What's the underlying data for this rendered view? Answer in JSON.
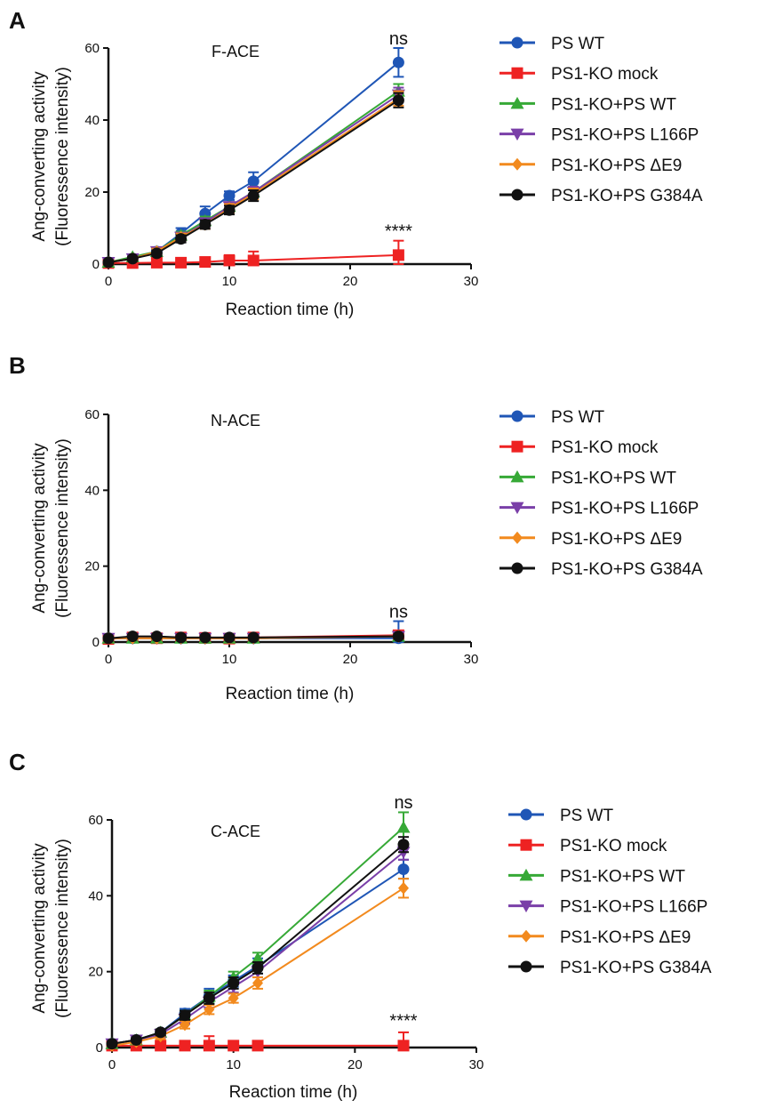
{
  "marker_colors": {
    "PS WT": "#1f56b6",
    "PS1-KO mock": "#ee2222",
    "PS1-KO+PS WT": "#36a936",
    "PS1-KO+PS L166P": "#7a3fa8",
    "PS1-KO+PS ΔE9": "#f28a1e",
    "PS1-KO+PS G384A": "#111111"
  },
  "marker_shapes": {
    "PS WT": "circle",
    "PS1-KO mock": "square",
    "PS1-KO+PS WT": "triangle-up",
    "PS1-KO+PS L166P": "triangle-down",
    "PS1-KO+PS ΔE9": "diamond",
    "PS1-KO+PS G384A": "circle"
  },
  "chart_data": [
    {
      "type": "line",
      "panel": "A",
      "title": "F-ACE",
      "xlabel": "Reaction time (h)",
      "ylabel_line1": "Ang-converting activity",
      "ylabel_line2": "(Fluoressence intensity)",
      "xlim": [
        0,
        30
      ],
      "ylim": [
        0,
        60
      ],
      "xticks": [
        0,
        10,
        20,
        30
      ],
      "yticks": [
        0,
        20,
        40,
        60
      ],
      "x": [
        0,
        2,
        4,
        6,
        8,
        10,
        12,
        24
      ],
      "annotations": [
        {
          "text": "ns",
          "x": 24,
          "y": 61
        },
        {
          "text": "****",
          "x": 24,
          "y": 7.5
        }
      ],
      "series": [
        {
          "name": "PS WT",
          "values": [
            0.5,
            1.5,
            3.5,
            8.5,
            14,
            19,
            23,
            56
          ],
          "errors": [
            0,
            0.5,
            0.8,
            1.5,
            2,
            1.2,
            2.5,
            4
          ]
        },
        {
          "name": "PS1-KO mock",
          "values": [
            0.3,
            0.3,
            0.4,
            0.4,
            0.6,
            1,
            1,
            2.5
          ],
          "errors": [
            0,
            0.2,
            0.3,
            0.3,
            0.4,
            1.5,
            2.5,
            4
          ]
        },
        {
          "name": "PS1-KO+PS WT",
          "values": [
            0.5,
            2,
            3.5,
            8,
            12,
            16,
            20,
            48
          ],
          "errors": [
            0,
            0.5,
            0.8,
            1,
            1.2,
            1.2,
            1.5,
            2
          ]
        },
        {
          "name": "PS1-KO+PS L166P",
          "values": [
            0.5,
            1.5,
            3.5,
            7.5,
            11.5,
            16,
            20,
            47
          ],
          "errors": [
            0,
            0.5,
            0.8,
            1,
            1.2,
            1.2,
            1.5,
            2
          ]
        },
        {
          "name": "PS1-KO+PS ΔE9",
          "values": [
            0.5,
            1.5,
            3.5,
            7.5,
            11,
            15.5,
            19.5,
            46
          ],
          "errors": [
            0,
            0.5,
            0.8,
            1,
            1.2,
            1.2,
            1.5,
            2
          ]
        },
        {
          "name": "PS1-KO+PS G384A",
          "values": [
            0.5,
            1.5,
            3,
            7,
            11,
            15,
            19,
            45.5
          ],
          "errors": [
            0,
            0.5,
            0.8,
            1,
            1.2,
            1.2,
            1.5,
            2
          ]
        }
      ]
    },
    {
      "type": "line",
      "panel": "B",
      "title": "N-ACE",
      "xlabel": "Reaction time (h)",
      "ylabel_line1": "Ang-converting activity",
      "ylabel_line2": "(Fluoressence intensity)",
      "xlim": [
        0,
        30
      ],
      "ylim": [
        0,
        60
      ],
      "xticks": [
        0,
        10,
        20,
        30
      ],
      "yticks": [
        0,
        20,
        40,
        60
      ],
      "x": [
        0,
        2,
        4,
        6,
        8,
        10,
        12,
        24
      ],
      "annotations": [
        {
          "text": "ns",
          "x": 24,
          "y": 6.5
        }
      ],
      "series": [
        {
          "name": "PS WT",
          "values": [
            1,
            1,
            1,
            1,
            1,
            1,
            1,
            1
          ],
          "errors": [
            0,
            0.3,
            0.3,
            0.3,
            0.3,
            0.3,
            0.3,
            4.5
          ]
        },
        {
          "name": "PS1-KO mock",
          "values": [
            0.8,
            1.2,
            1,
            1.2,
            1.1,
            0.9,
            1.2,
            1.8
          ],
          "errors": [
            0,
            0.3,
            0.3,
            0.3,
            0.3,
            0.3,
            0.3,
            1
          ]
        },
        {
          "name": "PS1-KO+PS WT",
          "values": [
            1,
            1,
            1,
            1,
            1,
            1,
            1,
            1.5
          ],
          "errors": [
            0,
            0.3,
            0.3,
            0.3,
            0.3,
            0.3,
            0.3,
            0.5
          ]
        },
        {
          "name": "PS1-KO+PS L166P",
          "values": [
            1,
            1,
            1,
            1,
            1,
            1,
            1,
            1.5
          ],
          "errors": [
            0,
            0.3,
            0.3,
            0.3,
            0.3,
            0.3,
            0.3,
            0.5
          ]
        },
        {
          "name": "PS1-KO+PS ΔE9",
          "values": [
            1,
            1,
            1,
            1,
            1,
            1,
            1,
            1.5
          ],
          "errors": [
            0,
            0.3,
            0.3,
            0.3,
            0.3,
            0.3,
            0.3,
            0.5
          ]
        },
        {
          "name": "PS1-KO+PS G384A",
          "values": [
            1,
            1.5,
            1.5,
            1.2,
            1.2,
            1.2,
            1.2,
            1.5
          ],
          "errors": [
            0,
            0.3,
            0.3,
            0.3,
            0.3,
            0.3,
            0.3,
            0.5
          ]
        }
      ]
    },
    {
      "type": "line",
      "panel": "C",
      "title": "C-ACE",
      "xlabel": "Reaction time (h)",
      "ylabel_line1": "Ang-converting activity",
      "ylabel_line2": "(Fluoressence intensity)",
      "xlim": [
        0,
        30
      ],
      "ylim": [
        0,
        60
      ],
      "xticks": [
        0,
        10,
        20,
        30
      ],
      "yticks": [
        0,
        20,
        40,
        60
      ],
      "x": [
        0,
        2,
        4,
        6,
        8,
        10,
        12,
        24
      ],
      "annotations": [
        {
          "text": "ns",
          "x": 24,
          "y": 63
        },
        {
          "text": "****",
          "x": 24,
          "y": 5.5
        }
      ],
      "series": [
        {
          "name": "PS WT",
          "values": [
            1,
            2,
            4,
            9,
            13.5,
            17.5,
            21.5,
            47
          ],
          "errors": [
            0,
            0.5,
            0.8,
            1.2,
            2,
            1.5,
            2,
            2.5
          ]
        },
        {
          "name": "PS1-KO mock",
          "values": [
            0.5,
            0.5,
            0.5,
            0.5,
            0.5,
            0.5,
            0.5,
            0.5
          ],
          "errors": [
            0,
            0.3,
            0.3,
            0.3,
            2.5,
            0.5,
            0.5,
            3.5
          ]
        },
        {
          "name": "PS1-KO+PS WT",
          "values": [
            1,
            2,
            4,
            8.5,
            13.5,
            18.5,
            23.5,
            58
          ],
          "errors": [
            0,
            0.5,
            0.8,
            1.2,
            1.5,
            1.5,
            1.5,
            4
          ]
        },
        {
          "name": "PS1-KO+PS L166P",
          "values": [
            1,
            2,
            3.5,
            7.5,
            12,
            16,
            20,
            51.5
          ],
          "errors": [
            0,
            0.5,
            0.8,
            1.2,
            1.5,
            1.5,
            1.5,
            2
          ]
        },
        {
          "name": "PS1-KO+PS ΔE9",
          "values": [
            0.5,
            1.5,
            3,
            6,
            10,
            13,
            17,
            42
          ],
          "errors": [
            0,
            0.5,
            0.8,
            1,
            1.2,
            1.2,
            1.5,
            2.5
          ]
        },
        {
          "name": "PS1-KO+PS G384A",
          "values": [
            1,
            2,
            4,
            8.5,
            13,
            17,
            21,
            53.5
          ],
          "errors": [
            0,
            0.5,
            0.8,
            1.2,
            1.5,
            1.5,
            1.5,
            2
          ]
        }
      ]
    }
  ]
}
